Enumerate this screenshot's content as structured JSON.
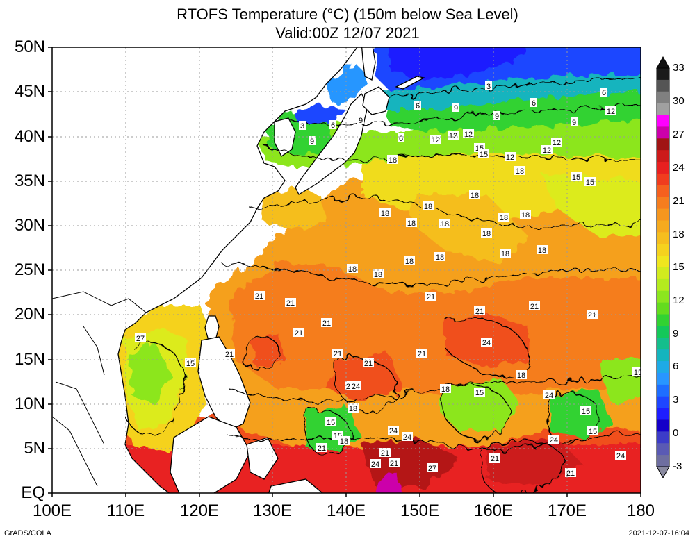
{
  "title_line1": "RTOFS Temperature (°C) (150m below Sea Level)",
  "title_line2": "Valid:00Z 12/07 2021",
  "lat_labels": [
    "50N",
    "45N",
    "40N",
    "35N",
    "30N",
    "25N",
    "20N",
    "15N",
    "10N",
    "5N",
    "EQ"
  ],
  "lon_labels": [
    "100E",
    "110E",
    "120E",
    "130E",
    "140E",
    "150E",
    "160E",
    "170E",
    "180"
  ],
  "colorbar": {
    "labels": [
      "33",
      "30",
      "27",
      "24",
      "21",
      "18",
      "15",
      "12",
      "9",
      "6",
      "3",
      "0",
      "-3"
    ],
    "colors": [
      "#1a1a1a",
      "#555555",
      "#808080",
      "#a0a0a0",
      "#ff00ff",
      "#cc00aa",
      "#a01414",
      "#cc1a1a",
      "#e82020",
      "#f03c1e",
      "#f5601e",
      "#f57d1e",
      "#f5961e",
      "#f5aa1e",
      "#f5be1e",
      "#f5d21e",
      "#f0e61e",
      "#d2eb1e",
      "#b4eb1e",
      "#8ce61e",
      "#64dc1e",
      "#32d232",
      "#14c85a",
      "#14be8c",
      "#14b4be",
      "#1eaae6",
      "#2896ff",
      "#1e6eff",
      "#1e46ff",
      "#1e1eff",
      "#1400c8",
      "#3c3cc8",
      "#5a5ab4",
      "#6e6ea0"
    ]
  },
  "footer_left": "GrADS/COLA",
  "footer_right": "2021-12-07-16:04",
  "contour_labels": [
    "3",
    "6",
    "9",
    "3",
    "6",
    "9",
    "6",
    "9",
    "12",
    "6",
    "3",
    "6",
    "9",
    "12",
    "6",
    "9",
    "12",
    "12",
    "15",
    "12",
    "12",
    "12",
    "15",
    "15",
    "15",
    "18",
    "18",
    "18",
    "18",
    "18",
    "18",
    "18",
    "18",
    "18",
    "18",
    "18",
    "18",
    "18",
    "18",
    "18",
    "18",
    "21",
    "21",
    "21",
    "21",
    "21",
    "21",
    "21",
    "21",
    "21",
    "21",
    "21",
    "21",
    "21",
    "24",
    "24",
    "24",
    "24",
    "24",
    "24",
    "24",
    "24",
    "27",
    "27",
    "15",
    "15",
    "15",
    "15",
    "15",
    "15",
    "15",
    "18",
    "18",
    "18",
    "18",
    "21",
    "21",
    "21",
    "21",
    "21"
  ]
}
